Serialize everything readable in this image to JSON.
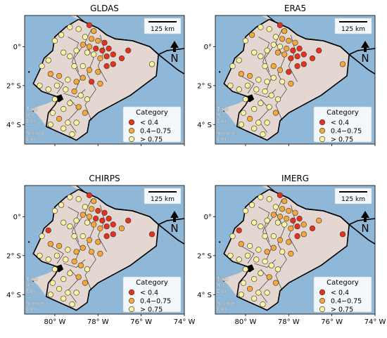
{
  "figure": {
    "panels": [
      {
        "title": "GLDAS",
        "show_y_ticks": true,
        "show_x_ticks": false
      },
      {
        "title": "ERA5",
        "show_y_ticks": true,
        "show_x_ticks": false
      },
      {
        "title": "CHIRPS",
        "show_y_ticks": true,
        "show_x_ticks": true
      },
      {
        "title": "IMERG",
        "show_y_ticks": true,
        "show_x_ticks": true
      }
    ],
    "x_ticks": [
      "80° W",
      "78° W",
      "76° W",
      "74° W"
    ],
    "x_tick_values": [
      -80,
      -78,
      -76,
      -74
    ],
    "y_ticks": [
      "0°",
      "2° S",
      "4° S"
    ],
    "y_tick_values": [
      0,
      -2,
      -4
    ],
    "extent": {
      "lon_min": -81.4,
      "lon_max": -74.0,
      "lat_min": -5.0,
      "lat_max": 1.6
    },
    "scale_bar": "125 km",
    "north_arrow": "N",
    "attribution": [
      "Tiles",
      "(C)",
      "Esri",
      "—",
      "Source:",
      "Esri"
    ],
    "legend": {
      "title": "Category",
      "entries": [
        {
          "label": "< 0.4",
          "color": "#e8301c"
        },
        {
          "label": "0.4−0.75",
          "color": "#f5a83a"
        },
        {
          "label": "> 0.75",
          "color": "#fdf2a0"
        }
      ]
    },
    "colors": {
      "ocean": "#8fb8d8",
      "land": "#e4d6d0",
      "border": "#000000",
      "grid": "#d4d4d4"
    }
  }
}
